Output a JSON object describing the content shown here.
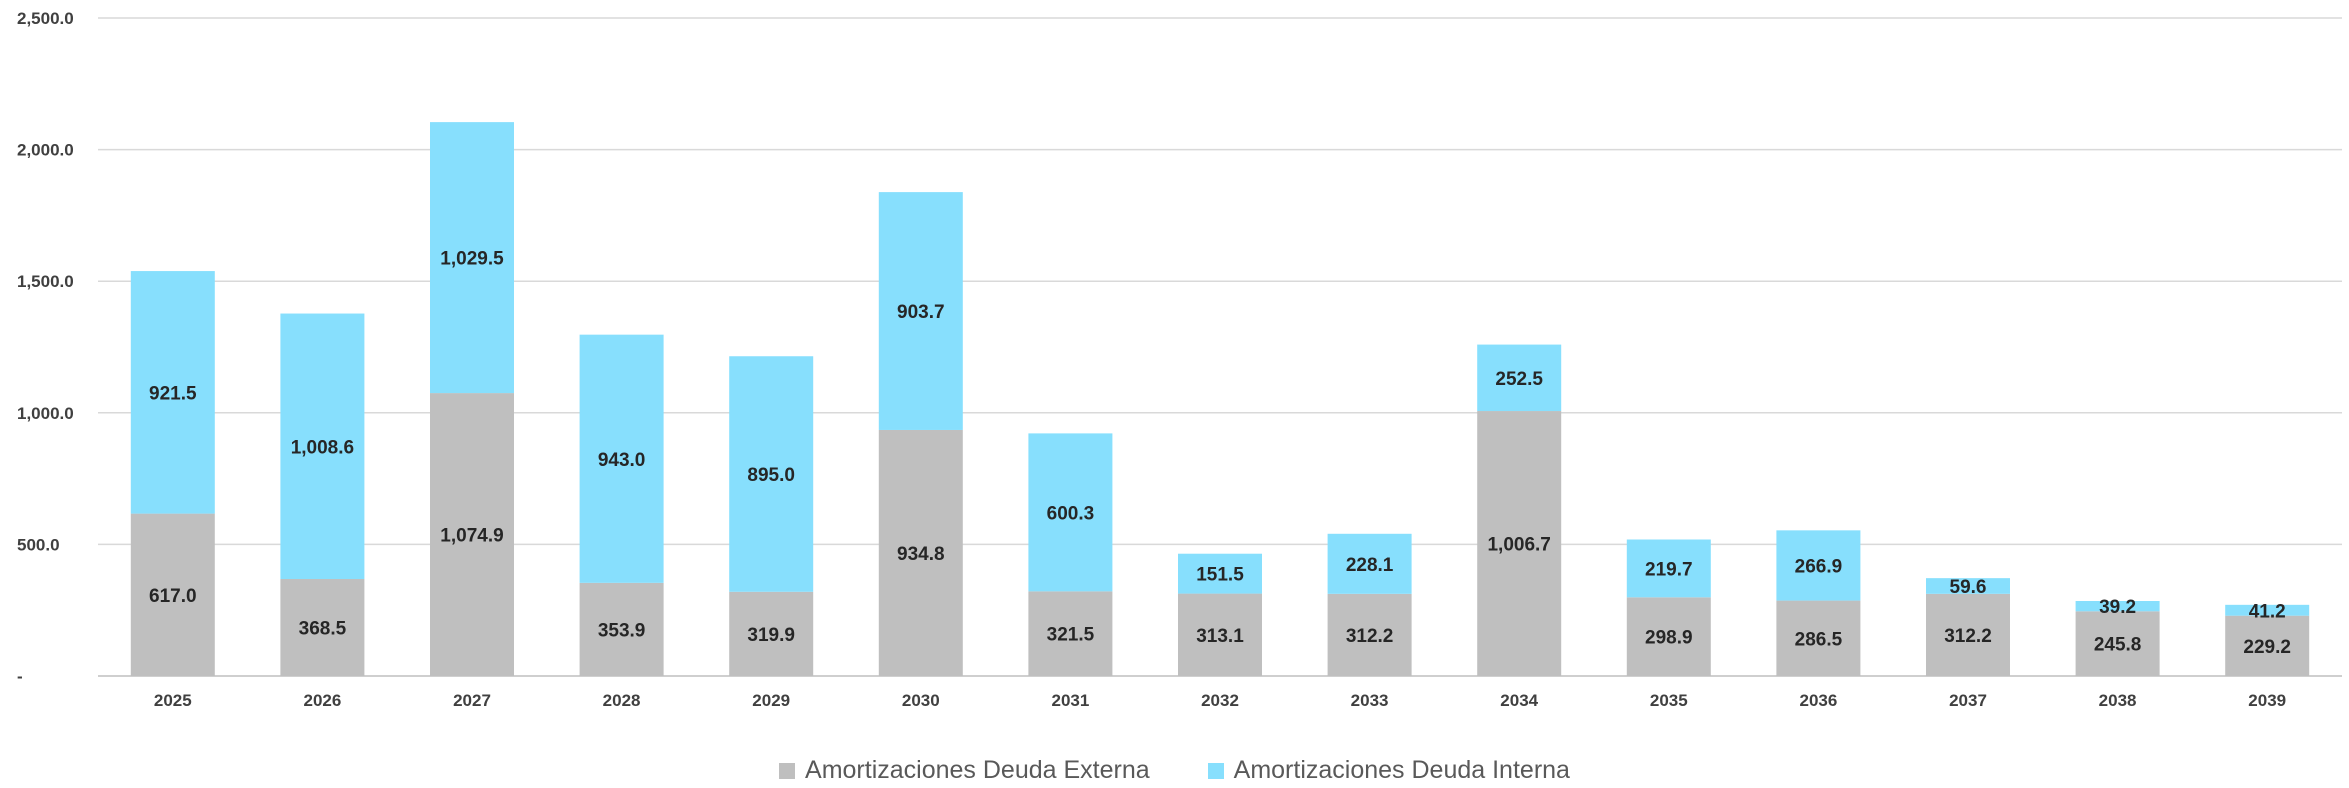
{
  "chart_data": {
    "type": "bar",
    "stacked": true,
    "categories": [
      "2025",
      "2026",
      "2027",
      "2028",
      "2029",
      "2030",
      "2031",
      "2032",
      "2033",
      "2034",
      "2035",
      "2036",
      "2037",
      "2038",
      "2039"
    ],
    "series": [
      {
        "name": "Amortizaciones Deuda Externa",
        "color": "#bfbfbf",
        "values": [
          617.0,
          368.5,
          1074.9,
          353.9,
          319.9,
          934.8,
          321.5,
          313.1,
          312.2,
          1006.7,
          298.9,
          286.5,
          312.2,
          245.8,
          229.2
        ],
        "labels": [
          "617.0",
          "368.5",
          "1,074.9",
          "353.9",
          "319.9",
          "934.8",
          "321.5",
          "313.1",
          "312.2",
          "1,006.7",
          "298.9",
          "286.5",
          "312.2",
          "245.8",
          "229.2"
        ]
      },
      {
        "name": "Amortizaciones Deuda Interna",
        "color": "#87dffd",
        "values": [
          921.5,
          1008.6,
          1029.5,
          943.0,
          895.0,
          903.7,
          600.3,
          151.5,
          228.1,
          252.5,
          219.7,
          266.9,
          59.6,
          39.2,
          41.2
        ],
        "labels": [
          "921.5",
          "1,008.6",
          "1,029.5",
          "943.0",
          "895.0",
          "903.7",
          "600.3",
          "151.5",
          "228.1",
          "252.5",
          "219.7",
          "266.9",
          "59.6",
          "39.2",
          "41.2"
        ]
      }
    ],
    "ylim": [
      0,
      2500
    ],
    "yticks": [
      0,
      500,
      1000,
      1500,
      2000,
      2500
    ],
    "ytick_labels": [
      "-",
      "500.0",
      "1,000.0",
      "1,500.0",
      "2,000.0",
      "2,500.0"
    ],
    "grid": true,
    "legend_position": "bottom-center",
    "title": "",
    "xlabel": "",
    "ylabel": ""
  }
}
